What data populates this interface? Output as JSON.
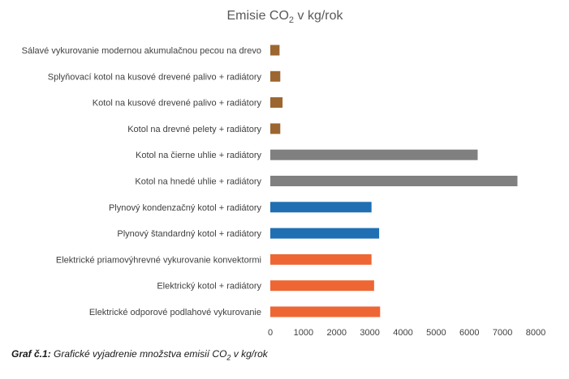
{
  "chart_data": {
    "type": "bar",
    "orientation": "horizontal",
    "title": {
      "main": "Emisie CO",
      "subscript": "2",
      "rest": " v kg/rok"
    },
    "categories": [
      "Sálavé vykurovanie modernou akumulačnou pecou na drevo",
      "Splyňovací kotol na kusové drevené palivo + radiátory",
      "Kotol na kusové drevené palivo + radiátory",
      "Kotol na drevné pelety + radiátory",
      "Kotol na čierne uhlie + radiátory",
      "Kotol na hnedé uhlie + radiátory",
      "Plynový kondenzačný kotol + radiátory",
      "Plynový štandardný kotol + radiátory",
      "Elektrické priamovýhrevné vykurovanie konvektormi",
      "Elektrický kotol + radiátory",
      "Elektrické odporové podlahové vykurovanie"
    ],
    "values": [
      280,
      300,
      370,
      300,
      6250,
      7450,
      3050,
      3280,
      3050,
      3130,
      3310
    ],
    "colors": [
      "#9c6630",
      "#9c6630",
      "#9c6630",
      "#9c6630",
      "#808080",
      "#808080",
      "#1f6fb2",
      "#1f6fb2",
      "#ee6633",
      "#ee6633",
      "#ee6633"
    ],
    "xlim": [
      0,
      8000
    ],
    "xticks": [
      0,
      1000,
      2000,
      3000,
      4000,
      5000,
      6000,
      7000,
      8000
    ],
    "xlabel": "",
    "ylabel": "",
    "grid": false,
    "legend": "none"
  },
  "caption": {
    "label": "Graf č.1:",
    "text": " Grafické vyjadrenie množstva emisií CO",
    "subscript": "2",
    "suffix": " v kg/rok"
  }
}
